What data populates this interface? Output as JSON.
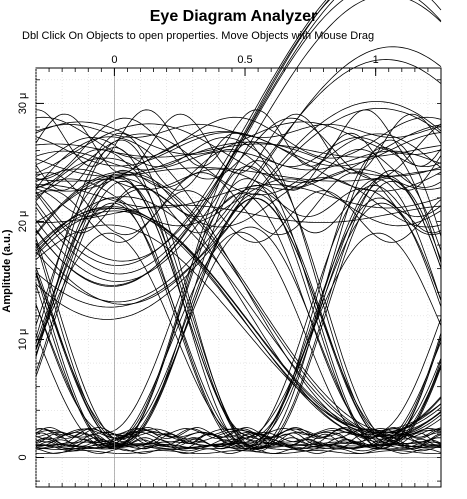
{
  "window": {
    "title": "Eye Diagram Analyzer",
    "subtitle": "Dbl Click On Objects to open properties.  Move Objects with Mouse Drag"
  },
  "chart_data": {
    "type": "line",
    "title": "Eye Diagram Analyzer",
    "xlabel": "",
    "ylabel": "Amplitude (a.u.)",
    "xlim": [
      -0.3,
      1.25
    ],
    "ylim": [
      -2.5e-06,
      3.3e-05
    ],
    "x_ticks": [
      {
        "value": 0,
        "label": "0"
      },
      {
        "value": 0.5,
        "label": "0.5"
      },
      {
        "value": 1,
        "label": "1"
      }
    ],
    "y_ticks": [
      {
        "value": 0,
        "label": "0"
      },
      {
        "value": 1e-05,
        "label": "10 μ"
      },
      {
        "value": 2e-05,
        "label": "20 μ"
      },
      {
        "value": 3e-05,
        "label": "30 μ"
      }
    ],
    "grid": true,
    "description_levels": {
      "low_level_range": [
        0,
        2e-06
      ],
      "high_level_range": [
        1.8e-05,
        3.1e-05
      ],
      "crossing_points": [
        0.0,
        1.03
      ],
      "eye_bottom_x": 0.55
    },
    "series": [
      {
        "values": [
          [
            -0.3,
            2.2e-05
          ],
          [
            0.5,
            2.5e-05
          ],
          [
            1.25,
            2.2e-05
          ]
        ]
      },
      {
        "values": [
          [
            -0.3,
            2e-05
          ],
          [
            0.5,
            2.1e-05
          ],
          [
            1.25,
            2e-05
          ]
        ]
      },
      {
        "values": [
          [
            -0.3,
            4e-06
          ],
          [
            0.0,
            1.2e-05
          ],
          [
            0.3,
            2.3e-05
          ],
          [
            0.55,
            2.6e-05
          ],
          [
            0.8,
            2.2e-05
          ],
          [
            1.03,
            1.2e-05
          ],
          [
            1.25,
            1e-06
          ]
        ]
      },
      {
        "values": [
          [
            -0.3,
            2.3e-05
          ],
          [
            0.0,
            1.2e-05
          ],
          [
            0.3,
            2e-06
          ],
          [
            0.55,
            1.5e-06
          ],
          [
            0.8,
            2.5e-06
          ],
          [
            1.03,
            1.2e-05
          ],
          [
            1.25,
            2.3e-05
          ]
        ]
      },
      {
        "values": [
          [
            -0.3,
            1e-06
          ],
          [
            0.5,
            1e-06
          ],
          [
            1.25,
            1e-06
          ]
        ]
      },
      {
        "values": [
          [
            -0.3,
            2e-06
          ],
          [
            0.5,
            1.5e-06
          ],
          [
            1.25,
            2e-06
          ]
        ]
      }
    ]
  }
}
